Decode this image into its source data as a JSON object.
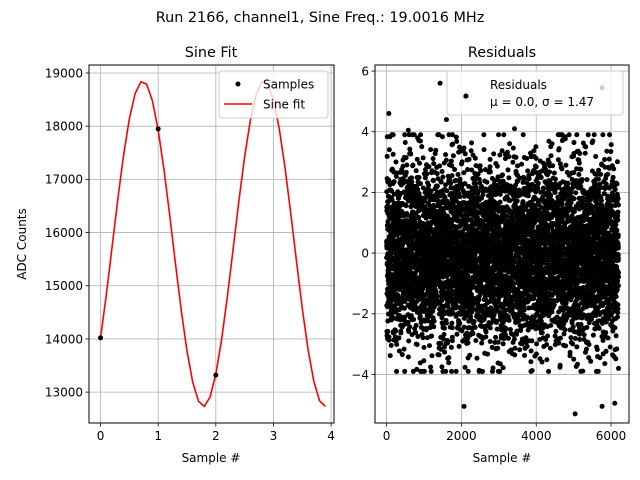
{
  "suptitle": "Run 2166, channel1, Sine Freq.: 19.0016 MHz",
  "chart_data": [
    {
      "type": "line",
      "title": "Sine Fit",
      "xlabel": "Sample #",
      "ylabel": "ADC Counts",
      "xlim": [
        -0.2,
        4.05
      ],
      "ylim": [
        12420,
        19150
      ],
      "xticks": [
        0,
        1,
        2,
        3,
        4
      ],
      "xtick_labels": [
        "0",
        "1",
        "2",
        "3",
        "4"
      ],
      "yticks": [
        13000,
        14000,
        15000,
        16000,
        17000,
        18000,
        19000
      ],
      "ytick_labels": [
        "13000",
        "14000",
        "15000",
        "16000",
        "17000",
        "18000",
        "19000"
      ],
      "grid": true,
      "legend": {
        "placement": "top-right",
        "entries": [
          "Samples",
          "Sine fit"
        ]
      },
      "samples": {
        "name": "Samples",
        "color": "#000000",
        "x": [
          0,
          1,
          2
        ],
        "y": [
          14020,
          17950,
          13320
        ]
      },
      "fit": {
        "name": "Sine fit",
        "color": "#ff0000",
        "model": {
          "mean": 15790,
          "amplitude": 3060,
          "frequency": 0.4753,
          "phase": -0.618
        },
        "x_range": [
          0,
          3.9
        ],
        "n_points": 40
      }
    },
    {
      "type": "scatter",
      "title": "Residuals",
      "xlabel": "Sample #",
      "xlim": [
        -310,
        6480
      ],
      "ylim": [
        -5.6,
        6.2
      ],
      "xticks": [
        0,
        2000,
        4000,
        6000
      ],
      "xtick_labels": [
        "0",
        "2000",
        "4000",
        "6000"
      ],
      "yticks": [
        -4,
        -2,
        0,
        2,
        4,
        6
      ],
      "ytick_labels": [
        "−4",
        "−2",
        "0",
        "2",
        "4",
        "6"
      ],
      "grid": true,
      "legend": {
        "placement": "top-right",
        "entries": [
          "Residuals"
        ],
        "annotation": "μ = 0.0, σ = 1.47"
      },
      "series": {
        "name": "Residuals",
        "color": "#000000",
        "n_points": 6200,
        "x_range": [
          0,
          6200
        ],
        "mean": 0.0,
        "std": 1.47
      },
      "notable_points": [
        {
          "x": 60,
          "y": 4.6
        },
        {
          "x": 1430,
          "y": 5.6
        },
        {
          "x": 2100,
          "y": 5.15
        },
        {
          "x": 5760,
          "y": 5.45
        },
        {
          "x": 5040,
          "y": -5.3
        },
        {
          "x": 2070,
          "y": -5.05
        },
        {
          "x": 5760,
          "y": -5.05
        },
        {
          "x": 6100,
          "y": -4.95
        },
        {
          "x": 580,
          "y": 4.05
        },
        {
          "x": 1600,
          "y": 4.4
        },
        {
          "x": 2600,
          "y": 3.9
        },
        {
          "x": 3420,
          "y": 4.1
        },
        {
          "x": 4600,
          "y": 3.4
        },
        {
          "x": 6200,
          "y": -3.8
        }
      ]
    }
  ]
}
